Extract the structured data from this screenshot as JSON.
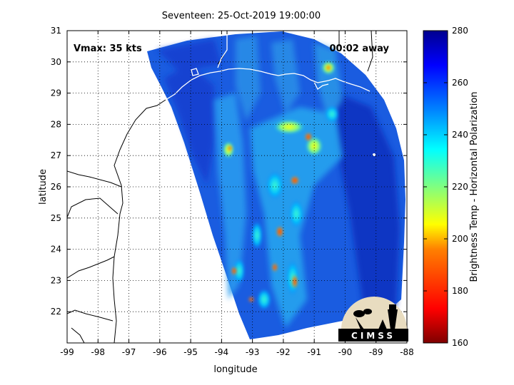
{
  "title": "Seventeen: 25-Oct-2019 19:00:00",
  "annotations": {
    "vmax": "Vmax: 35 kts",
    "time_away": "00:02 away"
  },
  "axes": {
    "xlabel": "longitude",
    "ylabel": "latitude",
    "x_ticks": [
      "-99",
      "-98",
      "-97",
      "-96",
      "-95",
      "-94",
      "-93",
      "-92",
      "-91",
      "-90",
      "-89",
      "-88"
    ],
    "y_ticks": [
      "22",
      "23",
      "24",
      "25",
      "26",
      "27",
      "28",
      "29",
      "30",
      "31"
    ]
  },
  "colorbar": {
    "label": "Brightness Temp - Horizontal Polarization",
    "ticks": [
      "160",
      "180",
      "200",
      "220",
      "240",
      "260",
      "280"
    ],
    "colormap": [
      "#7f0000",
      "#ff0000",
      "#ff8000",
      "#ffff00",
      "#80ff80",
      "#00ffff",
      "#0080ff",
      "#0000ff",
      "#00008f"
    ]
  },
  "logo": {
    "text": "CIMSS"
  },
  "colors": {
    "swath_base": "#1a5ce0",
    "swath_dark": "#1030c0",
    "coast": "#000000",
    "coast_on_swath": "#ffffff"
  }
}
